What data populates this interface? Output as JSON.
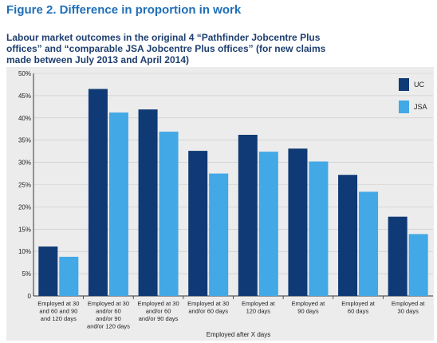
{
  "figure_label": "Figure 2. Difference in proportion in work",
  "chart_data": {
    "type": "bar",
    "title": "Labour market outcomes in the original 4 “Pathfinder Jobcentre Plus offices” and “comparable JSA Jobcentre Plus offices” (for new claims made between July 2013 and April 2014)",
    "xlabel": "Employed after X days",
    "ylabel": "",
    "ylim": [
      0,
      50
    ],
    "yticks": [
      "0",
      "5%",
      "10%",
      "15%",
      "20%",
      "25%",
      "30%",
      "35%",
      "40%",
      "45%",
      "50%"
    ],
    "grid": true,
    "legend_position": "top-right",
    "categories": [
      "Employed at 30 and 60 and 90 and 120 days",
      "Employed at 30 and/or 60 and/or 90 and/or 120 days",
      "Employed at 30 and/or 60 and/or 90 days",
      "Employed at 30 and/or 60 days",
      "Employed at 120 days",
      "Employed at 90 days",
      "Employed at 60 days",
      "Employed at 30 days"
    ],
    "category_lines": [
      [
        "Employed at 30",
        "and 60 and 90",
        "and 120 days"
      ],
      [
        "Employed at 30",
        "and/or 60",
        "and/or 90",
        "and/or 120 days"
      ],
      [
        "Employed at 30",
        "and/or 60",
        "and/or 90 days"
      ],
      [
        "Employed at 30",
        "and/or 60 days"
      ],
      [
        "Employed at",
        "120 days"
      ],
      [
        "Employed at",
        "90 days"
      ],
      [
        "Employed at",
        "60 days"
      ],
      [
        "Employed at",
        "30 days"
      ]
    ],
    "series": [
      {
        "name": "UC",
        "color": "#0f3a75",
        "values": [
          11.1,
          46.5,
          41.9,
          32.6,
          36.2,
          33.1,
          27.2,
          17.8
        ]
      },
      {
        "name": "JSA",
        "color": "#42a8e6",
        "values": [
          8.8,
          41.2,
          36.9,
          27.5,
          32.4,
          30.2,
          23.4,
          13.9
        ]
      }
    ]
  }
}
